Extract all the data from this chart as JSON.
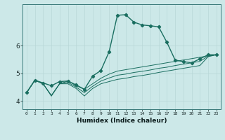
{
  "xlabel": "Humidex (Indice chaleur)",
  "xlim": [
    -0.5,
    23.5
  ],
  "ylim": [
    3.7,
    7.5
  ],
  "yticks": [
    4,
    5,
    6
  ],
  "xticks": [
    0,
    1,
    2,
    3,
    4,
    5,
    6,
    7,
    8,
    9,
    10,
    11,
    12,
    13,
    14,
    15,
    16,
    17,
    18,
    19,
    20,
    21,
    22,
    23
  ],
  "bg_color": "#cce8e8",
  "line_color": "#1a6e60",
  "lines": [
    {
      "x": [
        0,
        1,
        2,
        3,
        4,
        5,
        6,
        7,
        8,
        9,
        10,
        11,
        12,
        13,
        14,
        15,
        16,
        17,
        18,
        19,
        20,
        21,
        22,
        23
      ],
      "y": [
        4.3,
        4.75,
        4.65,
        4.55,
        4.7,
        4.72,
        4.58,
        4.42,
        4.9,
        5.1,
        5.78,
        7.1,
        7.12,
        6.85,
        6.75,
        6.72,
        6.68,
        6.12,
        5.48,
        5.42,
        5.38,
        5.52,
        5.67,
        5.67
      ],
      "marker": true,
      "lw": 1.0
    },
    {
      "x": [
        0,
        1,
        2,
        3,
        4,
        5,
        6,
        7,
        8,
        9,
        10,
        11,
        12,
        13,
        14,
        15,
        16,
        17,
        18,
        19,
        20,
        21,
        22,
        23
      ],
      "y": [
        4.3,
        4.75,
        4.62,
        4.18,
        4.62,
        4.62,
        4.45,
        4.18,
        4.45,
        4.62,
        4.7,
        4.78,
        4.82,
        4.88,
        4.92,
        4.97,
        5.03,
        5.08,
        5.13,
        5.18,
        5.23,
        5.28,
        5.6,
        5.67
      ],
      "marker": false,
      "lw": 0.7
    },
    {
      "x": [
        0,
        1,
        2,
        3,
        4,
        5,
        6,
        7,
        8,
        9,
        10,
        11,
        12,
        13,
        14,
        15,
        16,
        17,
        18,
        19,
        20,
        21,
        22,
        23
      ],
      "y": [
        4.3,
        4.75,
        4.62,
        4.18,
        4.62,
        4.72,
        4.55,
        4.42,
        4.62,
        4.82,
        4.97,
        5.08,
        5.13,
        5.18,
        5.23,
        5.28,
        5.33,
        5.38,
        5.43,
        5.48,
        5.53,
        5.58,
        5.63,
        5.67
      ],
      "marker": false,
      "lw": 0.7
    },
    {
      "x": [
        0,
        1,
        2,
        3,
        4,
        5,
        6,
        7,
        8,
        9,
        10,
        11,
        12,
        13,
        14,
        15,
        16,
        17,
        18,
        19,
        20,
        21,
        22,
        23
      ],
      "y": [
        4.3,
        4.75,
        4.62,
        4.2,
        4.62,
        4.67,
        4.5,
        4.3,
        4.53,
        4.72,
        4.83,
        4.93,
        4.97,
        5.03,
        5.07,
        5.12,
        5.18,
        5.22,
        5.28,
        5.33,
        5.38,
        5.43,
        5.62,
        5.67
      ],
      "marker": false,
      "lw": 0.7
    }
  ],
  "grid_color": "#b8d8d8",
  "grid_lw": 0.5
}
